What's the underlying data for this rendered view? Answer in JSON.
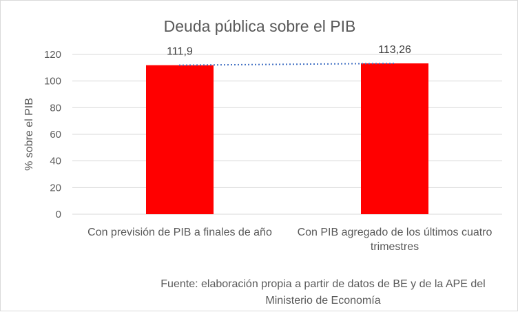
{
  "chart_data": {
    "type": "bar",
    "title": "Deuda pública sobre el PIB",
    "ylabel": "% sobre el PIB",
    "xlabel": "",
    "categories": [
      [
        "Con previsión de PIB a finales de año"
      ],
      [
        "Con PIB agregado de los últimos cuatro",
        "trimestres"
      ]
    ],
    "values": [
      111.9,
      113.26
    ],
    "data_labels": [
      "111,9",
      "113,26"
    ],
    "ylim": [
      0,
      120
    ],
    "yticks": [
      0,
      20,
      40,
      60,
      80,
      100,
      120
    ],
    "grid": true,
    "trendline": "linear",
    "colors": {
      "bar": "#ff0000",
      "gridline": "#d9d9d9",
      "trendline": "#4472c4",
      "text": "#595959"
    }
  },
  "source_note": [
    "Fuente: elaboración propia a partir de datos de BE y de la APE del",
    "Ministerio de Economía"
  ]
}
